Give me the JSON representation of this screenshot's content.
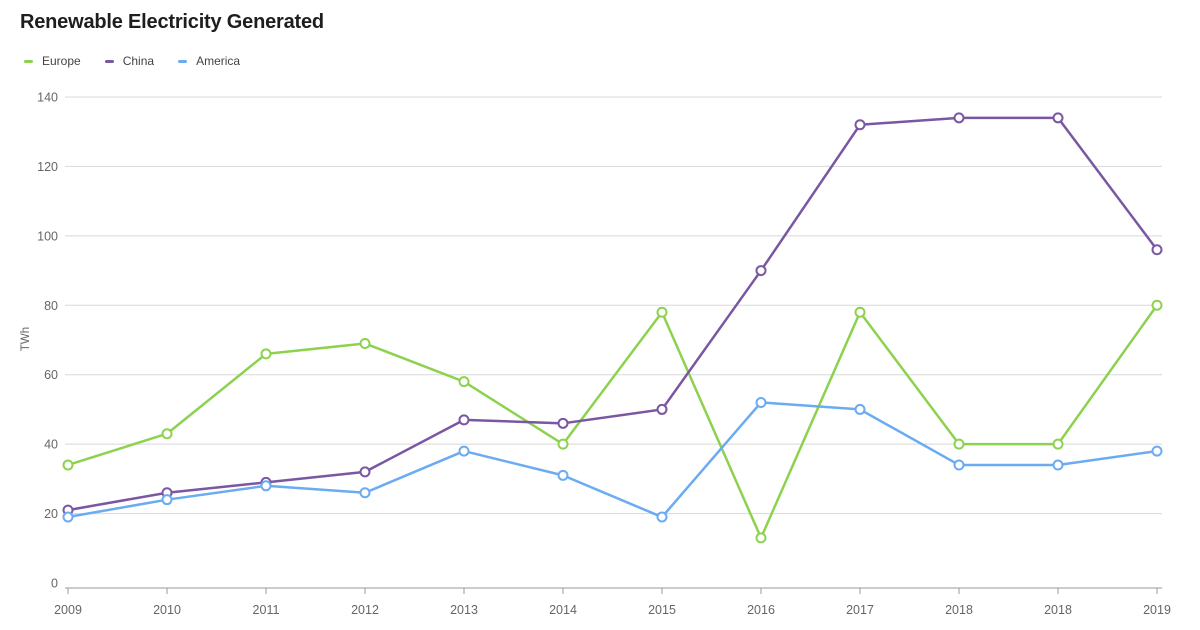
{
  "chart_data": {
    "type": "line",
    "title": "Renewable Electricity Generated",
    "ylabel": "TWh",
    "xlabel": "",
    "categories": [
      "2009",
      "2010",
      "2011",
      "2012",
      "2013",
      "2014",
      "2015",
      "2016",
      "2017",
      "2018",
      "2018",
      "2019"
    ],
    "series": [
      {
        "name": "Europe",
        "color": "#8dd24f",
        "values": [
          34,
          43,
          66,
          69,
          58,
          40,
          78,
          13,
          78,
          40,
          40,
          80
        ]
      },
      {
        "name": "China",
        "color": "#7a56a3",
        "values": [
          21,
          26,
          29,
          32,
          47,
          46,
          50,
          90,
          132,
          134,
          134,
          96
        ]
      },
      {
        "name": "America",
        "color": "#6aabf2",
        "values": [
          19,
          24,
          28,
          26,
          38,
          31,
          19,
          52,
          50,
          34,
          34,
          38
        ]
      }
    ],
    "ylim": [
      0,
      140
    ],
    "yticks": [
      0,
      20,
      40,
      60,
      80,
      100,
      120,
      140
    ],
    "grid": "horizontal",
    "legend_position": "top-left",
    "marker": "open-circle"
  },
  "style": {
    "background": "#ffffff",
    "grid_color": "#d8d8d8",
    "axis_color": "#9a9a9a",
    "tick_label_color": "#666666",
    "title_color": "#1e1e1e",
    "legend_text_color": "#444444"
  }
}
